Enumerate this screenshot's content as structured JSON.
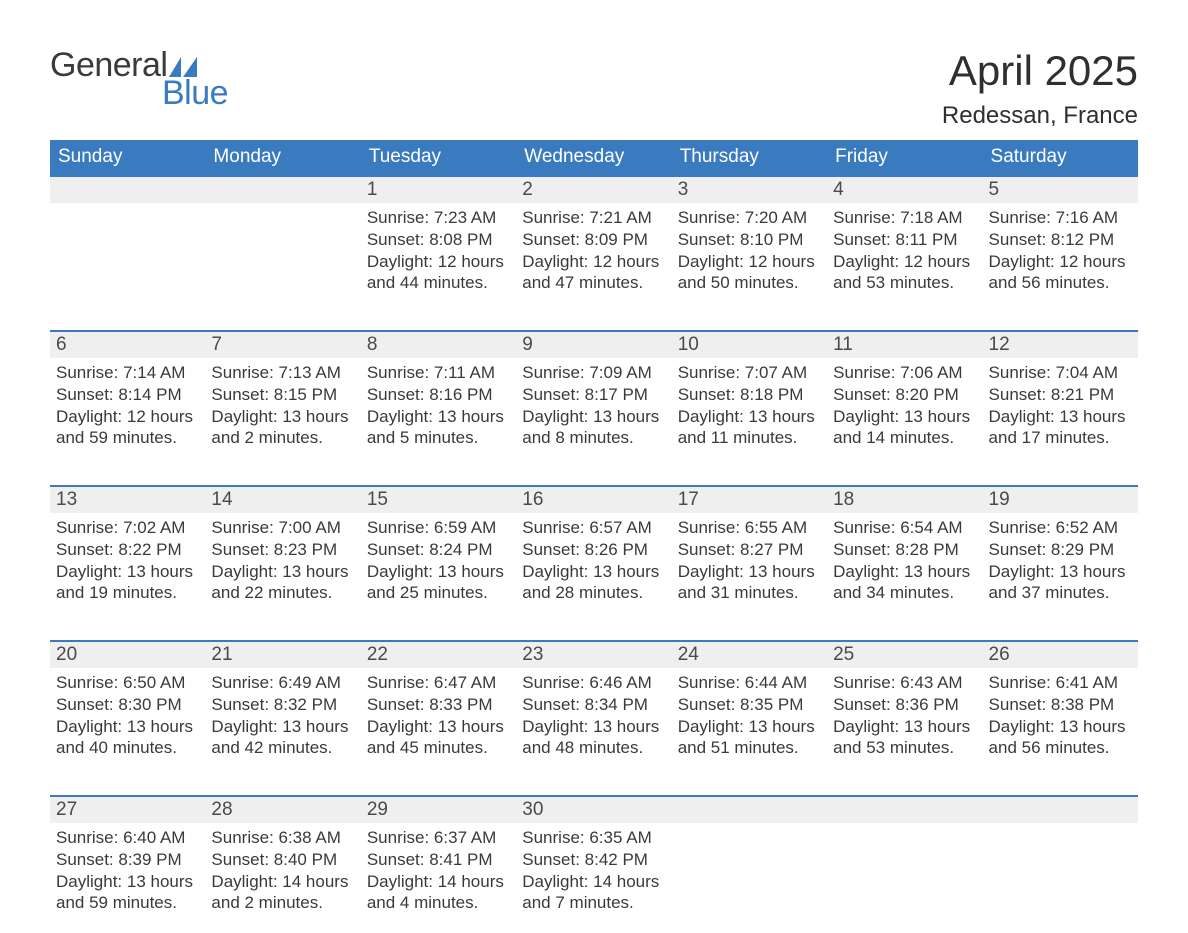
{
  "brand": {
    "part1": "General",
    "part2": "Blue",
    "text_color": "#3a3a3a",
    "accent_color": "#3a7bbf"
  },
  "title": "April 2025",
  "location": "Redessan, France",
  "colors": {
    "header_bg": "#3a7bbf",
    "header_text": "#ffffff",
    "daynum_bg": "#efefef",
    "row_border": "#3a7bbf",
    "body_text": "#3a3a3a",
    "page_bg": "#ffffff"
  },
  "typography": {
    "title_fontsize": 42,
    "location_fontsize": 24,
    "header_fontsize": 19,
    "daynum_fontsize": 19,
    "body_fontsize": 17
  },
  "days_of_week": [
    "Sunday",
    "Monday",
    "Tuesday",
    "Wednesday",
    "Thursday",
    "Friday",
    "Saturday"
  ],
  "weeks": [
    [
      null,
      null,
      {
        "n": "1",
        "sunrise": "7:23 AM",
        "sunset": "8:08 PM",
        "dl1": "Daylight: 12 hours",
        "dl2": "and 44 minutes."
      },
      {
        "n": "2",
        "sunrise": "7:21 AM",
        "sunset": "8:09 PM",
        "dl1": "Daylight: 12 hours",
        "dl2": "and 47 minutes."
      },
      {
        "n": "3",
        "sunrise": "7:20 AM",
        "sunset": "8:10 PM",
        "dl1": "Daylight: 12 hours",
        "dl2": "and 50 minutes."
      },
      {
        "n": "4",
        "sunrise": "7:18 AM",
        "sunset": "8:11 PM",
        "dl1": "Daylight: 12 hours",
        "dl2": "and 53 minutes."
      },
      {
        "n": "5",
        "sunrise": "7:16 AM",
        "sunset": "8:12 PM",
        "dl1": "Daylight: 12 hours",
        "dl2": "and 56 minutes."
      }
    ],
    [
      {
        "n": "6",
        "sunrise": "7:14 AM",
        "sunset": "8:14 PM",
        "dl1": "Daylight: 12 hours",
        "dl2": "and 59 minutes."
      },
      {
        "n": "7",
        "sunrise": "7:13 AM",
        "sunset": "8:15 PM",
        "dl1": "Daylight: 13 hours",
        "dl2": "and 2 minutes."
      },
      {
        "n": "8",
        "sunrise": "7:11 AM",
        "sunset": "8:16 PM",
        "dl1": "Daylight: 13 hours",
        "dl2": "and 5 minutes."
      },
      {
        "n": "9",
        "sunrise": "7:09 AM",
        "sunset": "8:17 PM",
        "dl1": "Daylight: 13 hours",
        "dl2": "and 8 minutes."
      },
      {
        "n": "10",
        "sunrise": "7:07 AM",
        "sunset": "8:18 PM",
        "dl1": "Daylight: 13 hours",
        "dl2": "and 11 minutes."
      },
      {
        "n": "11",
        "sunrise": "7:06 AM",
        "sunset": "8:20 PM",
        "dl1": "Daylight: 13 hours",
        "dl2": "and 14 minutes."
      },
      {
        "n": "12",
        "sunrise": "7:04 AM",
        "sunset": "8:21 PM",
        "dl1": "Daylight: 13 hours",
        "dl2": "and 17 minutes."
      }
    ],
    [
      {
        "n": "13",
        "sunrise": "7:02 AM",
        "sunset": "8:22 PM",
        "dl1": "Daylight: 13 hours",
        "dl2": "and 19 minutes."
      },
      {
        "n": "14",
        "sunrise": "7:00 AM",
        "sunset": "8:23 PM",
        "dl1": "Daylight: 13 hours",
        "dl2": "and 22 minutes."
      },
      {
        "n": "15",
        "sunrise": "6:59 AM",
        "sunset": "8:24 PM",
        "dl1": "Daylight: 13 hours",
        "dl2": "and 25 minutes."
      },
      {
        "n": "16",
        "sunrise": "6:57 AM",
        "sunset": "8:26 PM",
        "dl1": "Daylight: 13 hours",
        "dl2": "and 28 minutes."
      },
      {
        "n": "17",
        "sunrise": "6:55 AM",
        "sunset": "8:27 PM",
        "dl1": "Daylight: 13 hours",
        "dl2": "and 31 minutes."
      },
      {
        "n": "18",
        "sunrise": "6:54 AM",
        "sunset": "8:28 PM",
        "dl1": "Daylight: 13 hours",
        "dl2": "and 34 minutes."
      },
      {
        "n": "19",
        "sunrise": "6:52 AM",
        "sunset": "8:29 PM",
        "dl1": "Daylight: 13 hours",
        "dl2": "and 37 minutes."
      }
    ],
    [
      {
        "n": "20",
        "sunrise": "6:50 AM",
        "sunset": "8:30 PM",
        "dl1": "Daylight: 13 hours",
        "dl2": "and 40 minutes."
      },
      {
        "n": "21",
        "sunrise": "6:49 AM",
        "sunset": "8:32 PM",
        "dl1": "Daylight: 13 hours",
        "dl2": "and 42 minutes."
      },
      {
        "n": "22",
        "sunrise": "6:47 AM",
        "sunset": "8:33 PM",
        "dl1": "Daylight: 13 hours",
        "dl2": "and 45 minutes."
      },
      {
        "n": "23",
        "sunrise": "6:46 AM",
        "sunset": "8:34 PM",
        "dl1": "Daylight: 13 hours",
        "dl2": "and 48 minutes."
      },
      {
        "n": "24",
        "sunrise": "6:44 AM",
        "sunset": "8:35 PM",
        "dl1": "Daylight: 13 hours",
        "dl2": "and 51 minutes."
      },
      {
        "n": "25",
        "sunrise": "6:43 AM",
        "sunset": "8:36 PM",
        "dl1": "Daylight: 13 hours",
        "dl2": "and 53 minutes."
      },
      {
        "n": "26",
        "sunrise": "6:41 AM",
        "sunset": "8:38 PM",
        "dl1": "Daylight: 13 hours",
        "dl2": "and 56 minutes."
      }
    ],
    [
      {
        "n": "27",
        "sunrise": "6:40 AM",
        "sunset": "8:39 PM",
        "dl1": "Daylight: 13 hours",
        "dl2": "and 59 minutes."
      },
      {
        "n": "28",
        "sunrise": "6:38 AM",
        "sunset": "8:40 PM",
        "dl1": "Daylight: 14 hours",
        "dl2": "and 2 minutes."
      },
      {
        "n": "29",
        "sunrise": "6:37 AM",
        "sunset": "8:41 PM",
        "dl1": "Daylight: 14 hours",
        "dl2": "and 4 minutes."
      },
      {
        "n": "30",
        "sunrise": "6:35 AM",
        "sunset": "8:42 PM",
        "dl1": "Daylight: 14 hours",
        "dl2": "and 7 minutes."
      },
      null,
      null,
      null
    ]
  ],
  "labels": {
    "sunrise_prefix": "Sunrise: ",
    "sunset_prefix": "Sunset: "
  }
}
